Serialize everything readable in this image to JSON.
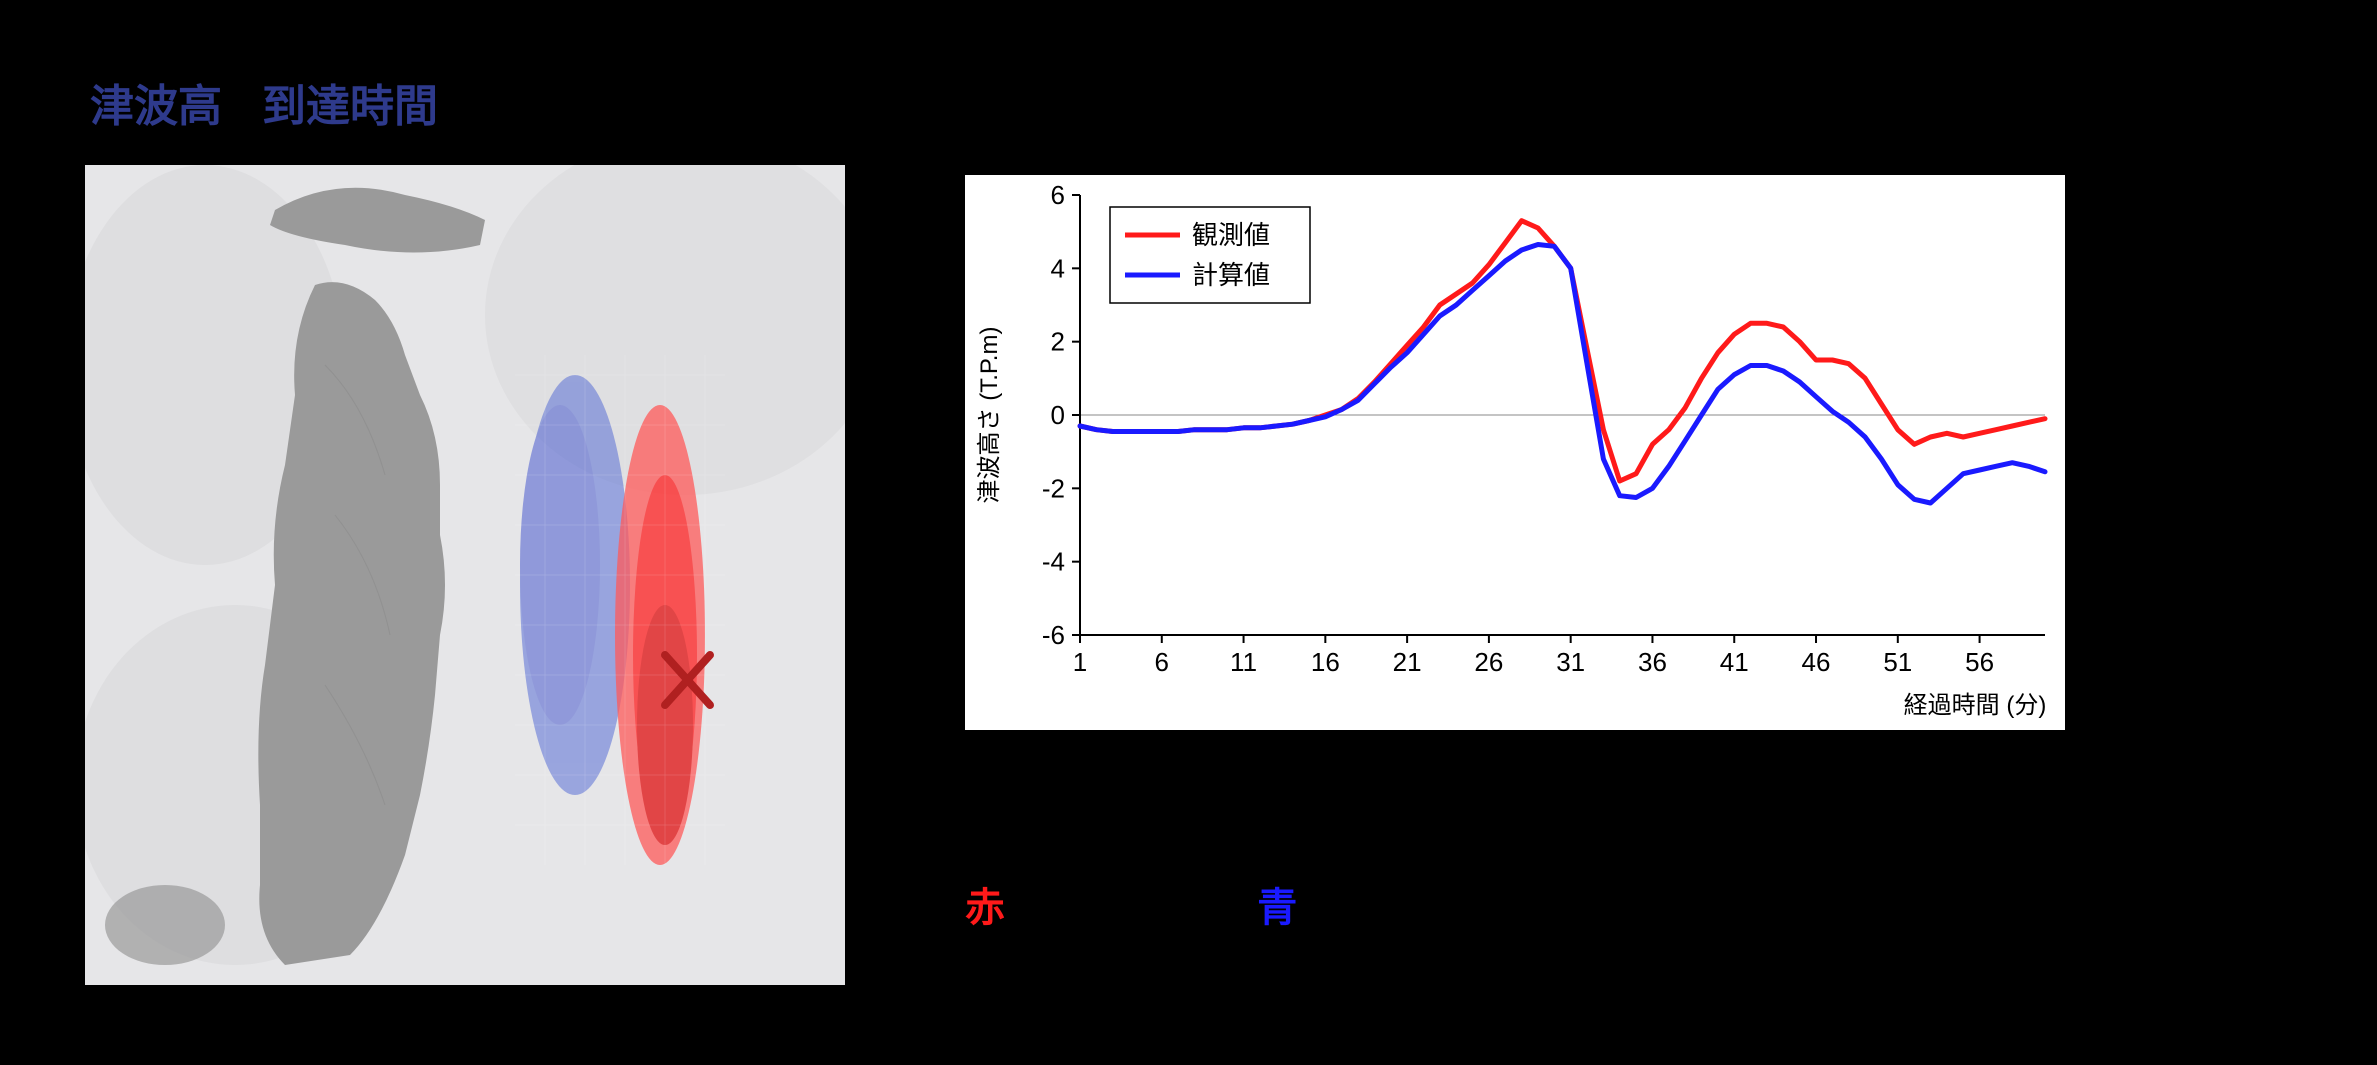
{
  "title": {
    "left": "津波高",
    "right": "到達時間",
    "color": "#2e3a8c",
    "fontsize": 44
  },
  "map": {
    "background": "#e6e6e8",
    "land_color": "#9a9a9a",
    "land_highlight": "#c9c9c9",
    "epicenter_mark_color": "#b02020",
    "blue_zone_color": "#4a5ccf",
    "red_zone_color": "#ff2020"
  },
  "bottom_labels": {
    "red": "赤",
    "blue": "青",
    "red_color": "#ff1a1a",
    "blue_color": "#1a1aff",
    "fontsize": 40
  },
  "chart": {
    "type": "line",
    "background_color": "#ffffff",
    "axis_color": "#000000",
    "grid_color": "#888888",
    "ylabel": "津波高さ (T.P.m)",
    "xlabel": "経過時間 (分)",
    "label_fontsize": 24,
    "tick_fontsize": 26,
    "xlim": [
      1,
      60
    ],
    "ylim": [
      -6,
      6
    ],
    "ytick_step": 2,
    "xticks": [
      1,
      6,
      11,
      16,
      21,
      26,
      31,
      36,
      41,
      46,
      51,
      56
    ],
    "legend": {
      "position": "top-left",
      "border_color": "#000000",
      "fontsize": 26,
      "items": [
        {
          "label": "観測値",
          "color": "#ff1a1a"
        },
        {
          "label": "計算値",
          "color": "#1a1aff"
        }
      ]
    },
    "line_width": 5,
    "series": [
      {
        "name": "observed",
        "color": "#ff1a1a",
        "data": [
          [
            1,
            -0.3
          ],
          [
            2,
            -0.4
          ],
          [
            3,
            -0.45
          ],
          [
            4,
            -0.45
          ],
          [
            5,
            -0.45
          ],
          [
            6,
            -0.45
          ],
          [
            7,
            -0.45
          ],
          [
            8,
            -0.4
          ],
          [
            9,
            -0.4
          ],
          [
            10,
            -0.4
          ],
          [
            11,
            -0.35
          ],
          [
            12,
            -0.35
          ],
          [
            13,
            -0.3
          ],
          [
            14,
            -0.25
          ],
          [
            15,
            -0.15
          ],
          [
            16,
            0.0
          ],
          [
            17,
            0.15
          ],
          [
            18,
            0.45
          ],
          [
            19,
            0.9
          ],
          [
            20,
            1.4
          ],
          [
            21,
            1.9
          ],
          [
            22,
            2.4
          ],
          [
            23,
            3.0
          ],
          [
            24,
            3.3
          ],
          [
            25,
            3.6
          ],
          [
            26,
            4.1
          ],
          [
            27,
            4.7
          ],
          [
            28,
            5.3
          ],
          [
            29,
            5.1
          ],
          [
            30,
            4.6
          ],
          [
            31,
            4.0
          ],
          [
            32,
            1.8
          ],
          [
            33,
            -0.4
          ],
          [
            34,
            -1.8
          ],
          [
            35,
            -1.6
          ],
          [
            36,
            -0.8
          ],
          [
            37,
            -0.4
          ],
          [
            38,
            0.2
          ],
          [
            39,
            1.0
          ],
          [
            40,
            1.7
          ],
          [
            41,
            2.2
          ],
          [
            42,
            2.5
          ],
          [
            43,
            2.5
          ],
          [
            44,
            2.4
          ],
          [
            45,
            2.0
          ],
          [
            46,
            1.5
          ],
          [
            47,
            1.5
          ],
          [
            48,
            1.4
          ],
          [
            49,
            1.0
          ],
          [
            50,
            0.3
          ],
          [
            51,
            -0.4
          ],
          [
            52,
            -0.8
          ],
          [
            53,
            -0.6
          ],
          [
            54,
            -0.5
          ],
          [
            55,
            -0.6
          ],
          [
            56,
            -0.5
          ],
          [
            57,
            -0.4
          ],
          [
            58,
            -0.3
          ],
          [
            59,
            -0.2
          ],
          [
            60,
            -0.1
          ]
        ]
      },
      {
        "name": "calculated",
        "color": "#1a1aff",
        "data": [
          [
            1,
            -0.3
          ],
          [
            2,
            -0.4
          ],
          [
            3,
            -0.45
          ],
          [
            4,
            -0.45
          ],
          [
            5,
            -0.45
          ],
          [
            6,
            -0.45
          ],
          [
            7,
            -0.45
          ],
          [
            8,
            -0.4
          ],
          [
            9,
            -0.4
          ],
          [
            10,
            -0.4
          ],
          [
            11,
            -0.35
          ],
          [
            12,
            -0.35
          ],
          [
            13,
            -0.3
          ],
          [
            14,
            -0.25
          ],
          [
            15,
            -0.15
          ],
          [
            16,
            -0.05
          ],
          [
            17,
            0.15
          ],
          [
            18,
            0.4
          ],
          [
            19,
            0.85
          ],
          [
            20,
            1.3
          ],
          [
            21,
            1.7
          ],
          [
            22,
            2.2
          ],
          [
            23,
            2.7
          ],
          [
            24,
            3.0
          ],
          [
            25,
            3.4
          ],
          [
            26,
            3.8
          ],
          [
            27,
            4.2
          ],
          [
            28,
            4.5
          ],
          [
            29,
            4.65
          ],
          [
            30,
            4.6
          ],
          [
            31,
            4.0
          ],
          [
            32,
            1.4
          ],
          [
            33,
            -1.2
          ],
          [
            34,
            -2.2
          ],
          [
            35,
            -2.25
          ],
          [
            36,
            -2.0
          ],
          [
            37,
            -1.4
          ],
          [
            38,
            -0.7
          ],
          [
            39,
            0.0
          ],
          [
            40,
            0.7
          ],
          [
            41,
            1.1
          ],
          [
            42,
            1.35
          ],
          [
            43,
            1.35
          ],
          [
            44,
            1.2
          ],
          [
            45,
            0.9
          ],
          [
            46,
            0.5
          ],
          [
            47,
            0.1
          ],
          [
            48,
            -0.2
          ],
          [
            49,
            -0.6
          ],
          [
            50,
            -1.2
          ],
          [
            51,
            -1.9
          ],
          [
            52,
            -2.3
          ],
          [
            53,
            -2.4
          ],
          [
            54,
            -2.0
          ],
          [
            55,
            -1.6
          ],
          [
            56,
            -1.5
          ],
          [
            57,
            -1.4
          ],
          [
            58,
            -1.3
          ],
          [
            59,
            -1.4
          ],
          [
            60,
            -1.55
          ]
        ]
      }
    ]
  }
}
